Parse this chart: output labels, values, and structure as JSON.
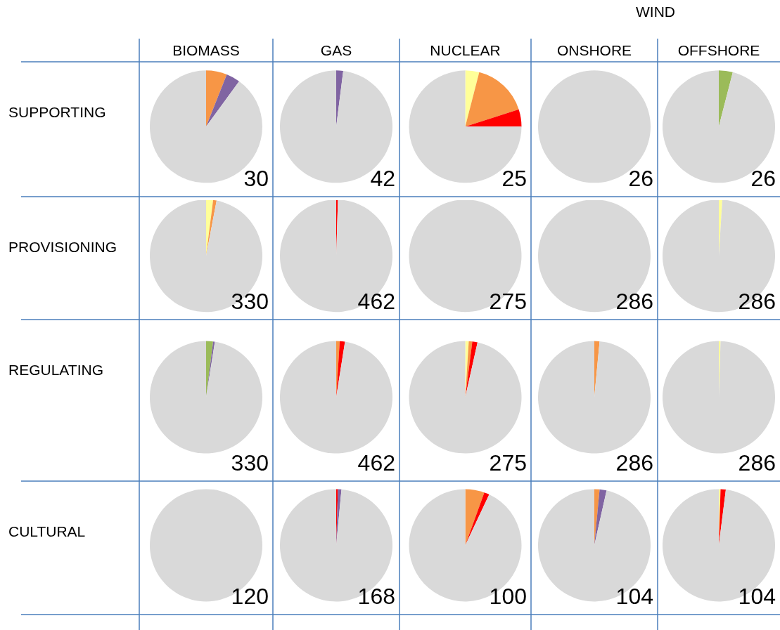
{
  "chart_data": [
    {
      "type": "pie",
      "title": "BIOMASS",
      "ylabel": "SUPPORTING",
      "categories": [
        null,
        null,
        null
      ],
      "values": [
        6,
        4,
        90
      ],
      "colors": [
        "#f79646",
        "#8064a2",
        "#d9d9d9"
      ],
      "annotations": [
        "30"
      ]
    },
    {
      "type": "pie",
      "title": "GAS",
      "categories": [
        null,
        null
      ],
      "values": [
        2,
        98
      ],
      "colors": [
        "#8064a2",
        "#d9d9d9"
      ],
      "annotations": [
        "42"
      ]
    },
    {
      "type": "pie",
      "title": "NUCLEAR",
      "categories": [
        null,
        null,
        null,
        null
      ],
      "values": [
        4,
        16,
        5,
        75
      ],
      "colors": [
        "#ffff99",
        "#f79646",
        "#ff0000",
        "#d9d9d9"
      ],
      "annotations": [
        "25"
      ]
    },
    {
      "type": "pie",
      "title": "ONSHORE",
      "categories": [
        null
      ],
      "values": [
        100
      ],
      "colors": [
        "#d9d9d9"
      ],
      "annotations": [
        "26"
      ]
    },
    {
      "type": "pie",
      "title": "OFFSHORE",
      "categories": [
        null,
        null
      ],
      "values": [
        4,
        96
      ],
      "colors": [
        "#9bbb59",
        "#d9d9d9"
      ],
      "annotations": [
        "26"
      ]
    },
    {
      "type": "pie",
      "ylabel": "PROVISIONING",
      "categories": [
        null,
        null,
        null
      ],
      "values": [
        2,
        1,
        97
      ],
      "colors": [
        "#ffff99",
        "#f79646",
        "#d9d9d9"
      ],
      "annotations": [
        "330"
      ]
    },
    {
      "type": "pie",
      "categories": [
        null,
        null
      ],
      "values": [
        0.5,
        99.5
      ],
      "colors": [
        "#ff0000",
        "#d9d9d9"
      ],
      "annotations": [
        "462"
      ]
    },
    {
      "type": "pie",
      "categories": [
        null
      ],
      "values": [
        100
      ],
      "colors": [
        "#d9d9d9"
      ],
      "annotations": [
        "275"
      ]
    },
    {
      "type": "pie",
      "categories": [
        null
      ],
      "values": [
        100
      ],
      "colors": [
        "#d9d9d9"
      ],
      "annotations": [
        "286"
      ]
    },
    {
      "type": "pie",
      "categories": [
        null,
        null
      ],
      "values": [
        1,
        99
      ],
      "colors": [
        "#ffff99",
        "#d9d9d9"
      ],
      "annotations": [
        "286"
      ]
    },
    {
      "type": "pie",
      "ylabel": "REGULATING",
      "categories": [
        null,
        null,
        null
      ],
      "values": [
        2,
        0.5,
        97.5
      ],
      "colors": [
        "#9bbb59",
        "#8064a2",
        "#d9d9d9"
      ],
      "annotations": [
        "330"
      ]
    },
    {
      "type": "pie",
      "categories": [
        null,
        null,
        null
      ],
      "values": [
        1,
        1.5,
        97.5
      ],
      "colors": [
        "#f79646",
        "#ff0000",
        "#d9d9d9"
      ],
      "annotations": [
        "462"
      ]
    },
    {
      "type": "pie",
      "categories": [
        null,
        null,
        null,
        null
      ],
      "values": [
        1,
        1,
        1.5,
        96.5
      ],
      "colors": [
        "#ffff99",
        "#f79646",
        "#ff0000",
        "#d9d9d9"
      ],
      "annotations": [
        "275"
      ]
    },
    {
      "type": "pie",
      "categories": [
        null,
        null
      ],
      "values": [
        1.5,
        98.5
      ],
      "colors": [
        "#f79646",
        "#d9d9d9"
      ],
      "annotations": [
        "286"
      ]
    },
    {
      "type": "pie",
      "categories": [
        null,
        null
      ],
      "values": [
        0.5,
        99.5
      ],
      "colors": [
        "#ffff99",
        "#d9d9d9"
      ],
      "annotations": [
        "286"
      ]
    },
    {
      "type": "pie",
      "ylabel": "CULTURAL",
      "categories": [
        null
      ],
      "values": [
        100
      ],
      "colors": [
        "#d9d9d9"
      ],
      "annotations": [
        "120"
      ]
    },
    {
      "type": "pie",
      "categories": [
        null,
        null,
        null
      ],
      "values": [
        0.5,
        1,
        98.5
      ],
      "colors": [
        "#ff0000",
        "#8064a2",
        "#d9d9d9"
      ],
      "annotations": [
        "168"
      ]
    },
    {
      "type": "pie",
      "categories": [
        null,
        null,
        null
      ],
      "values": [
        5.5,
        1.5,
        93
      ],
      "colors": [
        "#f79646",
        "#ff0000",
        "#d9d9d9"
      ],
      "annotations": [
        "100"
      ]
    },
    {
      "type": "pie",
      "categories": [
        null,
        null,
        null
      ],
      "values": [
        1.5,
        2,
        96.5
      ],
      "colors": [
        "#f79646",
        "#8064a2",
        "#d9d9d9"
      ],
      "annotations": [
        "104"
      ]
    },
    {
      "type": "pie",
      "categories": [
        null,
        null,
        null
      ],
      "values": [
        0.5,
        1.5,
        98
      ],
      "colors": [
        "#ffff99",
        "#ff0000",
        "#d9d9d9"
      ],
      "annotations": [
        "104"
      ]
    },
    {
      "type": "other",
      "title": "WIND"
    }
  ]
}
